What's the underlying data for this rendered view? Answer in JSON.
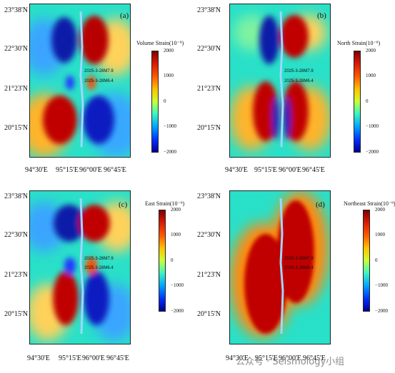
{
  "lat_labels": [
    "23°38'N",
    "22°30'N",
    "21°23'N",
    "20°15'N"
  ],
  "lon_labels": [
    "94°30'E",
    "95°15'E",
    "96°00'E",
    "96°45'E"
  ],
  "eq_labels": [
    "2025-3-28M7.9",
    "2025-3-28M6.4"
  ],
  "colorbar_ticks": [
    "2000",
    "1000",
    "0",
    "−1000",
    "−2000"
  ],
  "panels": [
    {
      "label": "(a)",
      "title": "Volume Strain(10⁻⁹)"
    },
    {
      "label": "(b)",
      "title": "North Strain(10⁻⁹)"
    },
    {
      "label": "(c)",
      "title": "East Strain(10⁻⁹)"
    },
    {
      "label": "(d)",
      "title": "Northeast Strain(10⁻⁹)"
    }
  ],
  "watermark": "公众号 · Seismology小组",
  "colors": {
    "background": "#29e0c8",
    "red": "#c40000",
    "blue": "#0a1fd9",
    "fault": "#9fd6ff"
  }
}
